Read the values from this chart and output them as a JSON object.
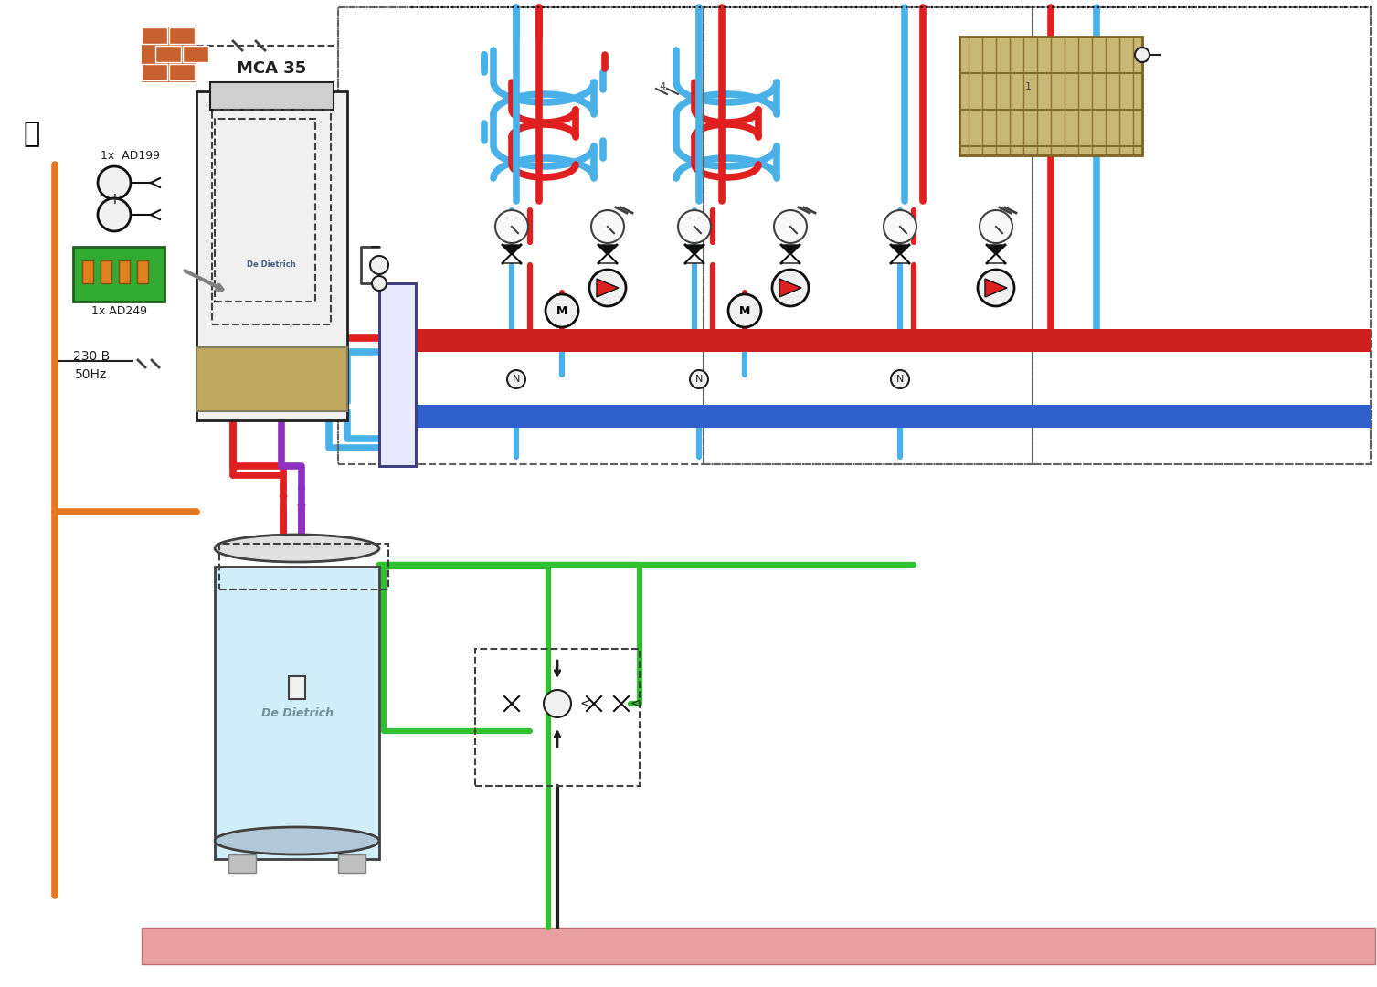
{
  "title": "",
  "bg_color": "#ffffff",
  "boiler_label": "MCA 35",
  "boiler_brand": "De Dietrich",
  "tank_brand": "De Dietrich",
  "label_ad199": "1x  AD199",
  "label_ad249": "1x AD249",
  "label_voltage": "230 B",
  "label_hz": "50Hz",
  "red_pipe": "#e02020",
  "blue_pipe": "#4ab0e8",
  "orange_pipe": "#e87820",
  "green_pipe": "#30c030",
  "purple_pipe": "#9030c0",
  "dark_pipe": "#202020",
  "manifold_red": "#cc2020",
  "manifold_blue": "#3060cc",
  "radiator_color": "#c8b878",
  "dashed_box_color": "#404040",
  "pump_color": "#cc2020",
  "valve_color": "#101010",
  "gauge_color": "#404040",
  "floor_color": "#e8a0a0",
  "tank_color": "#d0eef8",
  "tank_outline": "#606060"
}
